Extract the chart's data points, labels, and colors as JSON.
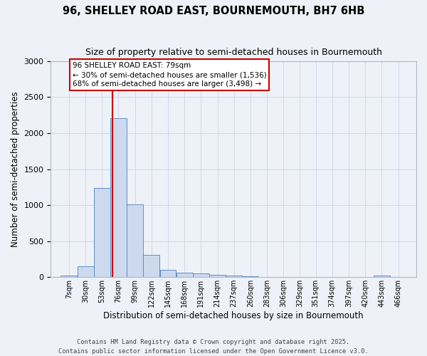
{
  "title": "96, SHELLEY ROAD EAST, BOURNEMOUTH, BH7 6HB",
  "subtitle": "Size of property relative to semi-detached houses in Bournemouth",
  "xlabel": "Distribution of semi-detached houses by size in Bournemouth",
  "ylabel": "Number of semi-detached properties",
  "footer_line1": "Contains HM Land Registry data © Crown copyright and database right 2025.",
  "footer_line2": "Contains public sector information licensed under the Open Government Licence v3.0.",
  "bar_color": "#ccd9ee",
  "bar_edge_color": "#6090c0",
  "grid_color": "#d0d8e8",
  "background_color": "#eef2f8",
  "red_line_x": 79,
  "annotation_line1": "96 SHELLEY ROAD EAST: 79sqm",
  "annotation_line2": "← 30% of semi-detached houses are smaller (1,536)",
  "annotation_line3": "68% of semi-detached houses are larger (3,498) →",
  "annotation_box_color": "#ffffff",
  "annotation_edge_color": "#cc0000",
  "red_line_color": "#cc0000",
  "categories": [
    "7sqm",
    "30sqm",
    "53sqm",
    "76sqm",
    "99sqm",
    "122sqm",
    "145sqm",
    "168sqm",
    "191sqm",
    "214sqm",
    "237sqm",
    "260sqm",
    "283sqm",
    "306sqm",
    "329sqm",
    "351sqm",
    "374sqm",
    "397sqm",
    "420sqm",
    "443sqm",
    "466sqm"
  ],
  "bin_starts": [
    7,
    30,
    53,
    76,
    99,
    122,
    145,
    168,
    191,
    214,
    237,
    260,
    283,
    306,
    329,
    351,
    374,
    397,
    420,
    443,
    466
  ],
  "bin_width": 23,
  "values": [
    20,
    155,
    1235,
    2210,
    1015,
    310,
    105,
    60,
    50,
    35,
    20,
    15,
    0,
    0,
    0,
    0,
    0,
    0,
    0,
    20,
    0
  ],
  "ylim": [
    0,
    3000
  ],
  "yticks": [
    0,
    500,
    1000,
    1500,
    2000,
    2500,
    3000
  ]
}
